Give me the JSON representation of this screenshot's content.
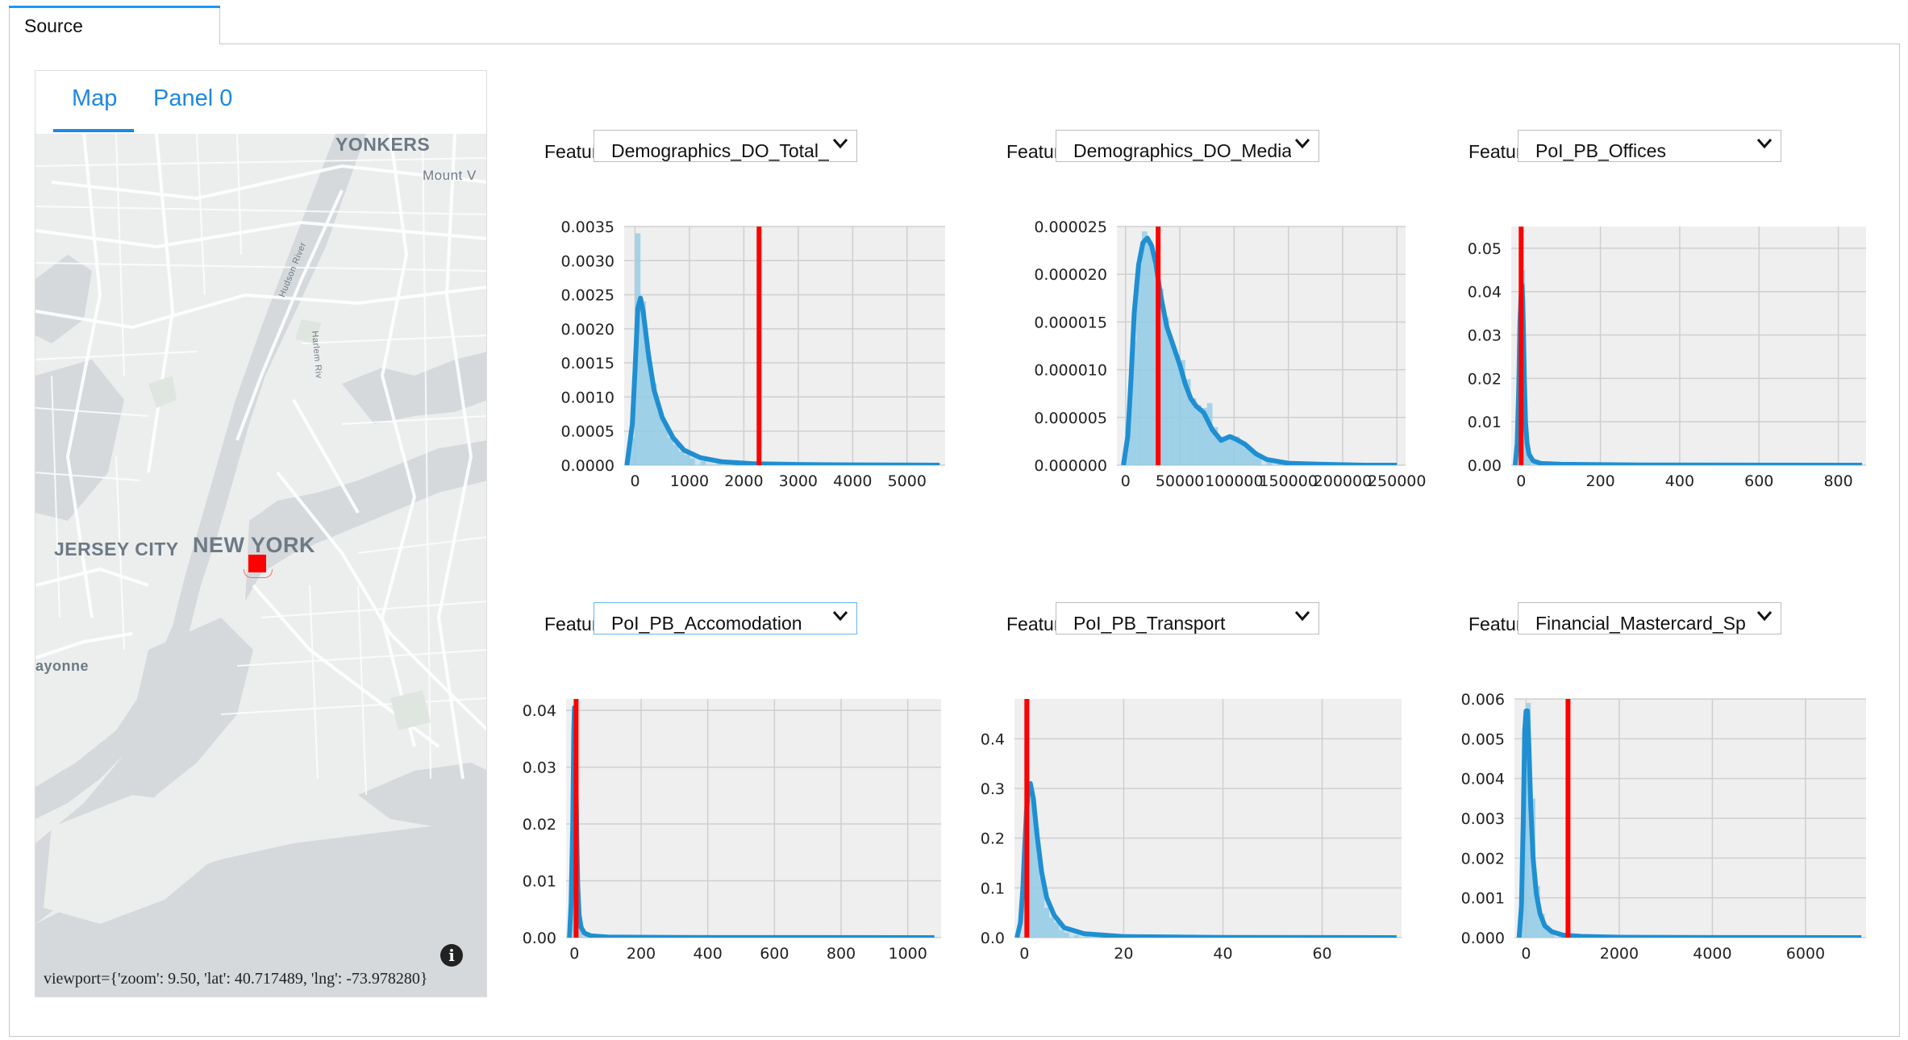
{
  "outer_tab": {
    "label": "Source"
  },
  "left_panel": {
    "tabs": [
      {
        "label": "Map",
        "active": true
      },
      {
        "label": "Panel 0",
        "active": false
      }
    ],
    "map": {
      "places": [
        "YONKERS",
        "Mount V",
        "NEW YORK",
        "JERSEY CITY",
        "ayonne"
      ],
      "rivers": [
        "Hudson River",
        "Harlem Riv"
      ],
      "marker_color": "#ff0000",
      "viewport_text": "viewport={'zoom': 9.50, 'lat': 40.717489, 'lng': -73.978280}"
    }
  },
  "panels": [
    {
      "label": "Feature",
      "selected": "Demographics_DO_Total_",
      "focused": false
    },
    {
      "label": "Feature",
      "selected": "Demographics_DO_Media",
      "focused": false
    },
    {
      "label": "Feature",
      "selected": "PoI_PB_Offices",
      "focused": false
    },
    {
      "label": "Feature",
      "selected": "PoI_PB_Accomodation",
      "focused": true
    },
    {
      "label": "Feature",
      "selected": "PoI_PB_Transport",
      "focused": false
    },
    {
      "label": "Feature",
      "selected": "Financial_Mastercard_Sp",
      "focused": false
    }
  ],
  "colors": {
    "accent": "#1e88e5",
    "kde": "#1f8fd2",
    "hist": "#8ecae6",
    "marker": "#ff0000",
    "plot_bg": "#efefef"
  },
  "chart_data": [
    {
      "type": "area",
      "xlim": [
        -200,
        5700
      ],
      "ylim": [
        0,
        0.0035
      ],
      "xticks": [
        0,
        1000,
        2000,
        3000,
        4000,
        5000
      ],
      "xtick_labels": [
        "0",
        "1000",
        "2000",
        "3000",
        "4000",
        "5000"
      ],
      "yticks": [
        0,
        0.0005,
        0.001,
        0.0015,
        0.002,
        0.0025,
        0.003,
        0.0035
      ],
      "ytick_labels": [
        "0.0000",
        "0.0005",
        "0.0010",
        "0.0015",
        "0.0020",
        "0.0025",
        "0.0030",
        "0.0035"
      ],
      "kde": {
        "x": [
          -150,
          -50,
          0,
          50,
          100,
          150,
          250,
          350,
          500,
          700,
          900,
          1200,
          1600,
          2200,
          3000,
          4000,
          5600
        ],
        "y": [
          0,
          0.0006,
          0.0014,
          0.0023,
          0.00245,
          0.00225,
          0.0016,
          0.0011,
          0.0007,
          0.0004,
          0.00022,
          0.00011,
          5e-05,
          2e-05,
          1e-05,
          5e-06,
          0
        ]
      },
      "hist": {
        "bin_width": 100,
        "x": [
          -100,
          0,
          100,
          200,
          300,
          400,
          500,
          600,
          700,
          800,
          900,
          1000,
          1200,
          1500,
          2000
        ],
        "y": [
          0.0004,
          0.0034,
          0.0024,
          0.0016,
          0.0012,
          0.0008,
          0.0006,
          0.0004,
          0.0003,
          0.0002,
          0.00015,
          0.0001,
          6e-05,
          4e-05,
          2e-05
        ]
      },
      "marker": 2280
    },
    {
      "type": "area",
      "xlim": [
        -8000,
        258000
      ],
      "ylim": [
        0,
        2.5e-05
      ],
      "xticks": [
        0,
        50000,
        100000,
        150000,
        200000,
        250000
      ],
      "xtick_labels": [
        "0",
        "50000",
        "100000",
        "150000",
        "200000",
        "250000"
      ],
      "yticks": [
        0,
        5e-06,
        1e-05,
        1.5e-05,
        2e-05,
        2.5e-05
      ],
      "ytick_labels": [
        "0.000000",
        "0.000005",
        "0.000010",
        "0.000015",
        "0.000020",
        "0.000025"
      ],
      "kde": {
        "x": [
          -2000,
          2000,
          5000,
          8000,
          12000,
          16000,
          20000,
          24000,
          28000,
          32000,
          38000,
          44000,
          50000,
          55000,
          60000,
          65000,
          72000,
          80000,
          88000,
          96000,
          102000,
          110000,
          120000,
          130000,
          150000,
          180000,
          220000,
          250000
        ],
        "y": [
          0,
          3e-06,
          9e-06,
          1.6e-05,
          2.1e-05,
          2.33e-05,
          2.38e-05,
          2.3e-05,
          2.1e-05,
          1.8e-05,
          1.45e-05,
          1.25e-05,
          1.05e-05,
          8.5e-06,
          7e-06,
          6.2e-06,
          5.5e-06,
          3.7e-06,
          2.6e-06,
          3e-06,
          2.7e-06,
          2.2e-06,
          1.2e-06,
          6e-07,
          2e-07,
          1e-07,
          0,
          0
        ]
      },
      "hist": {
        "bin_width": 5000,
        "x": [
          0,
          5000,
          10000,
          15000,
          20000,
          25000,
          30000,
          35000,
          40000,
          45000,
          50000,
          55000,
          60000,
          65000,
          70000,
          75000,
          80000,
          85000,
          90000,
          95000,
          100000,
          105000,
          110000,
          115000,
          120000,
          130000,
          140000
        ],
        "y": [
          4e-06,
          1.3e-05,
          2.1e-05,
          2.45e-05,
          2.35e-05,
          2.1e-05,
          1.85e-05,
          1.55e-05,
          1.3e-05,
          1.15e-05,
          1.1e-05,
          9e-06,
          7e-06,
          6.3e-06,
          6e-06,
          6.5e-06,
          4e-06,
          3e-06,
          3e-06,
          3.2e-06,
          3e-06,
          2.5e-06,
          2e-06,
          1.5e-06,
          1e-06,
          6e-07,
          3e-07
        ]
      },
      "marker": 30000
    },
    {
      "type": "area",
      "xlim": [
        -25,
        870
      ],
      "ylim": [
        0,
        0.055
      ],
      "xticks": [
        0,
        200,
        400,
        600,
        800
      ],
      "xtick_labels": [
        "0",
        "200",
        "400",
        "600",
        "800"
      ],
      "yticks": [
        0,
        0.01,
        0.02,
        0.03,
        0.04,
        0.05
      ],
      "ytick_labels": [
        "0.00",
        "0.01",
        "0.02",
        "0.03",
        "0.04",
        "0.05"
      ],
      "kde": {
        "x": [
          -15,
          -10,
          -6,
          -3,
          0,
          2,
          4,
          6,
          8,
          11,
          15,
          20,
          30,
          50,
          100,
          300,
          860
        ],
        "y": [
          0,
          0.005,
          0.018,
          0.033,
          0.0395,
          0.0415,
          0.038,
          0.03,
          0.02,
          0.01,
          0.005,
          0.0025,
          0.001,
          0.0004,
          0.0002,
          5e-05,
          0
        ]
      },
      "hist": {
        "bin_width": 5,
        "x": [
          -5,
          0,
          5,
          10,
          15,
          20,
          30
        ],
        "y": [
          0.03,
          0.055,
          0.045,
          0.012,
          0.005,
          0.002,
          0.001
        ]
      },
      "marker": 0
    },
    {
      "type": "area",
      "xlim": [
        -25,
        1100
      ],
      "ylim": [
        0,
        0.042
      ],
      "xticks": [
        0,
        200,
        400,
        600,
        800,
        1000
      ],
      "xtick_labels": [
        "0",
        "200",
        "400",
        "600",
        "800",
        "1000"
      ],
      "yticks": [
        0,
        0.01,
        0.02,
        0.03,
        0.04
      ],
      "ytick_labels": [
        "0.00",
        "0.01",
        "0.02",
        "0.03",
        "0.04"
      ],
      "kde": {
        "x": [
          -15,
          -10,
          -5,
          -2,
          0,
          2,
          4,
          7,
          10,
          14,
          20,
          30,
          50,
          100,
          300,
          1080
        ],
        "y": [
          0,
          0.006,
          0.02,
          0.036,
          0.0405,
          0.039,
          0.03,
          0.018,
          0.009,
          0.004,
          0.0018,
          0.0008,
          0.0003,
          0.0001,
          3e-05,
          0
        ]
      },
      "hist": {
        "bin_width": 5,
        "x": [
          -5,
          0,
          5,
          10,
          15,
          20,
          30
        ],
        "y": [
          0.02,
          0.042,
          0.03,
          0.01,
          0.004,
          0.002,
          0.001
        ]
      },
      "marker": 5
    },
    {
      "type": "area",
      "xlim": [
        -2,
        76
      ],
      "ylim": [
        0,
        0.48
      ],
      "xticks": [
        0,
        20,
        40,
        60
      ],
      "xtick_labels": [
        "0",
        "20",
        "40",
        "60"
      ],
      "yticks": [
        0,
        0.1,
        0.2,
        0.3,
        0.4
      ],
      "ytick_labels": [
        "0.0",
        "0.1",
        "0.2",
        "0.3",
        "0.4"
      ],
      "kde": {
        "x": [
          -1.5,
          -0.8,
          -0.3,
          0,
          0.4,
          0.8,
          1.2,
          1.8,
          2.5,
          3.5,
          4.5,
          6,
          8,
          12,
          20,
          40,
          75
        ],
        "y": [
          0,
          0.03,
          0.1,
          0.17,
          0.25,
          0.3,
          0.31,
          0.28,
          0.21,
          0.13,
          0.08,
          0.045,
          0.02,
          0.008,
          0.002,
          0.0005,
          0
        ]
      },
      "hist": {
        "bin_width": 1,
        "x": [
          0,
          1,
          2,
          3,
          4,
          5,
          6,
          7,
          8,
          10,
          12
        ],
        "y": [
          0.5,
          0.28,
          0.22,
          0.12,
          0.06,
          0.04,
          0.03,
          0.015,
          0.01,
          0.005,
          0.003
        ]
      },
      "marker": 0.5
    },
    {
      "type": "area",
      "xlim": [
        -250,
        7300
      ],
      "ylim": [
        0,
        0.006
      ],
      "xticks": [
        0,
        2000,
        4000,
        6000
      ],
      "xtick_labels": [
        "0",
        "2000",
        "4000",
        "6000"
      ],
      "yticks": [
        0,
        0.001,
        0.002,
        0.003,
        0.004,
        0.005,
        0.006
      ],
      "ytick_labels": [
        "0.000",
        "0.001",
        "0.002",
        "0.003",
        "0.004",
        "0.005",
        "0.006"
      ],
      "kde": {
        "x": [
          -150,
          -100,
          -60,
          -30,
          0,
          30,
          60,
          100,
          150,
          220,
          300,
          400,
          550,
          800,
          1200,
          2000,
          4000,
          7200
        ],
        "y": [
          0,
          0.0008,
          0.003,
          0.0052,
          0.0057,
          0.0057,
          0.0048,
          0.0033,
          0.002,
          0.0011,
          0.0006,
          0.0003,
          0.00015,
          6e-05,
          3e-05,
          1e-05,
          3e-06,
          0
        ]
      },
      "hist": {
        "bin_width": 100,
        "x": [
          -100,
          0,
          100,
          200,
          300,
          400,
          500,
          700
        ],
        "y": [
          0.003,
          0.0059,
          0.0035,
          0.0013,
          0.0006,
          0.0003,
          0.00015,
          5e-05
        ]
      },
      "marker": 900
    }
  ]
}
